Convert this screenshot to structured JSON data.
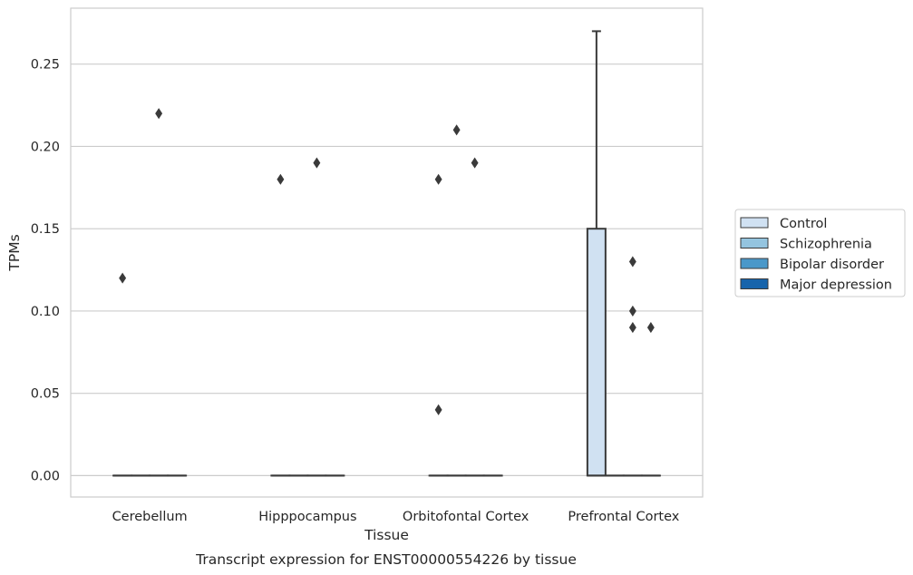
{
  "chart_data": {
    "type": "box",
    "title": "",
    "caption": "Transcript expression for ENST00000554226 by tissue",
    "xlabel": "Tissue",
    "ylabel": "TPMs",
    "ylim": [
      -0.013,
      0.284
    ],
    "yticks": [
      "0.00",
      "0.05",
      "0.10",
      "0.15",
      "0.20",
      "0.25"
    ],
    "grid": true,
    "legend_position": "right",
    "categories": [
      "Cerebellum",
      "Hipppocampus",
      "Orbitofontal Cortex",
      "Prefrontal Cortex"
    ],
    "colors": {
      "Control": "#d0e1f2",
      "Schizophrenia": "#94c4df",
      "Bipolar disorder": "#4a98c9",
      "Major depression": "#1764ab",
      "edge": "#3a3a3a",
      "grid": "#cccccc",
      "frame": "#cccccc"
    },
    "series": [
      {
        "name": "Control",
        "boxes": [
          {
            "category": "Cerebellum",
            "q1": 0.0,
            "median": 0.0,
            "q3": 0.0,
            "whisker_low": 0.0,
            "whisker_high": 0.0,
            "outliers": [
              0.12
            ]
          },
          {
            "category": "Hipppocampus",
            "q1": 0.0,
            "median": 0.0,
            "q3": 0.0,
            "whisker_low": 0.0,
            "whisker_high": 0.0,
            "outliers": [
              0.18
            ]
          },
          {
            "category": "Orbitofontal Cortex",
            "q1": 0.0,
            "median": 0.0,
            "q3": 0.0,
            "whisker_low": 0.0,
            "whisker_high": 0.0,
            "outliers": [
              0.18,
              0.04
            ]
          },
          {
            "category": "Prefrontal Cortex",
            "q1": 0.0,
            "median": 0.0,
            "q3": 0.15,
            "whisker_low": 0.0,
            "whisker_high": 0.27,
            "outliers": []
          }
        ]
      },
      {
        "name": "Schizophrenia",
        "boxes": [
          {
            "category": "Cerebellum",
            "q1": 0.0,
            "median": 0.0,
            "q3": 0.0,
            "whisker_low": 0.0,
            "whisker_high": 0.0,
            "outliers": []
          },
          {
            "category": "Hipppocampus",
            "q1": 0.0,
            "median": 0.0,
            "q3": 0.0,
            "whisker_low": 0.0,
            "whisker_high": 0.0,
            "outliers": []
          },
          {
            "category": "Orbitofontal Cortex",
            "q1": 0.0,
            "median": 0.0,
            "q3": 0.0,
            "whisker_low": 0.0,
            "whisker_high": 0.0,
            "outliers": [
              0.21
            ]
          },
          {
            "category": "Prefrontal Cortex",
            "q1": 0.0,
            "median": 0.0,
            "q3": 0.0,
            "whisker_low": 0.0,
            "whisker_high": 0.0,
            "outliers": []
          }
        ]
      },
      {
        "name": "Bipolar disorder",
        "boxes": [
          {
            "category": "Cerebellum",
            "q1": 0.0,
            "median": 0.0,
            "q3": 0.0,
            "whisker_low": 0.0,
            "whisker_high": 0.0,
            "outliers": [
              0.22
            ]
          },
          {
            "category": "Hipppocampus",
            "q1": 0.0,
            "median": 0.0,
            "q3": 0.0,
            "whisker_low": 0.0,
            "whisker_high": 0.0,
            "outliers": [
              0.19
            ]
          },
          {
            "category": "Orbitofontal Cortex",
            "q1": 0.0,
            "median": 0.0,
            "q3": 0.0,
            "whisker_low": 0.0,
            "whisker_high": 0.0,
            "outliers": [
              0.19
            ]
          },
          {
            "category": "Prefrontal Cortex",
            "q1": 0.0,
            "median": 0.0,
            "q3": 0.0,
            "whisker_low": 0.0,
            "whisker_high": 0.0,
            "outliers": [
              0.13,
              0.1,
              0.09
            ]
          }
        ]
      },
      {
        "name": "Major depression",
        "boxes": [
          {
            "category": "Cerebellum",
            "q1": 0.0,
            "median": 0.0,
            "q3": 0.0,
            "whisker_low": 0.0,
            "whisker_high": 0.0,
            "outliers": []
          },
          {
            "category": "Hipppocampus",
            "q1": 0.0,
            "median": 0.0,
            "q3": 0.0,
            "whisker_low": 0.0,
            "whisker_high": 0.0,
            "outliers": []
          },
          {
            "category": "Orbitofontal Cortex",
            "q1": 0.0,
            "median": 0.0,
            "q3": 0.0,
            "whisker_low": 0.0,
            "whisker_high": 0.0,
            "outliers": []
          },
          {
            "category": "Prefrontal Cortex",
            "q1": 0.0,
            "median": 0.0,
            "q3": 0.0,
            "whisker_low": 0.0,
            "whisker_high": 0.0,
            "outliers": [
              0.09
            ]
          }
        ]
      }
    ]
  }
}
